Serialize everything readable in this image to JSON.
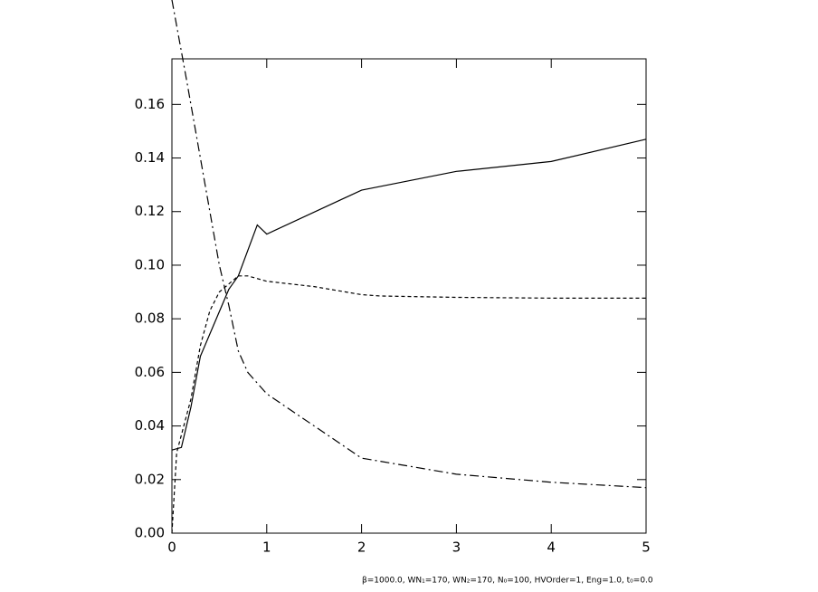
{
  "chart_data": {
    "type": "line",
    "footnote": "β=1000.0, WN₁=170, WN₂=170, N₀=100, HVOrder=1, Eng=1.0, t₀=0.0",
    "xlim": [
      0,
      5
    ],
    "xticks": [
      0,
      1,
      2,
      3,
      4,
      5
    ],
    "ylim": [
      0,
      0.177
    ],
    "yticks": [
      {
        "value": 0,
        "label": "0.00"
      },
      {
        "value": 0.02,
        "label": "0.02"
      },
      {
        "value": 0.04,
        "label": "0.04"
      },
      {
        "value": 0.06,
        "label": "0.06"
      },
      {
        "value": 0.08,
        "label": "0.08"
      },
      {
        "value": 0.1,
        "label": "0.10"
      },
      {
        "value": 0.12,
        "label": "0.12"
      },
      {
        "value": 0.14,
        "label": "0.14"
      },
      {
        "value": 0.16,
        "label": "0.16"
      }
    ],
    "series": [
      {
        "color": "#000000",
        "style": "solid",
        "x": [
          0,
          0.1,
          0.2,
          0.3,
          0.6,
          0.7,
          0.9,
          1,
          2,
          3,
          4,
          5
        ],
        "values": [
          0.031,
          0.032,
          0.047,
          0.066,
          0.091,
          0.096,
          0.115,
          0.1116,
          0.128,
          0.135,
          0.1387,
          0.147
        ]
      },
      {
        "color": "#000000",
        "style": "dashed",
        "x": [
          0,
          0.05,
          0.2,
          0.3,
          0.4,
          0.5,
          0.7,
          0.8,
          1,
          1.5,
          2,
          2.2,
          3,
          4,
          5
        ],
        "values": [
          0.0,
          0.03,
          0.05,
          0.07,
          0.083,
          0.09,
          0.096,
          0.096,
          0.094,
          0.092,
          0.089,
          0.0885,
          0.088,
          0.0877,
          0.0877
        ]
      },
      {
        "color": "#000000",
        "style": "dashdot",
        "x": [
          0,
          0.15,
          0.3,
          0.5,
          0.6,
          0.7,
          0.8,
          1,
          2,
          3,
          4,
          5
        ],
        "values": [
          0.199,
          0.17,
          0.14,
          0.1,
          0.085,
          0.068,
          0.06,
          0.052,
          0.028,
          0.022,
          0.019,
          0.017
        ]
      }
    ]
  }
}
